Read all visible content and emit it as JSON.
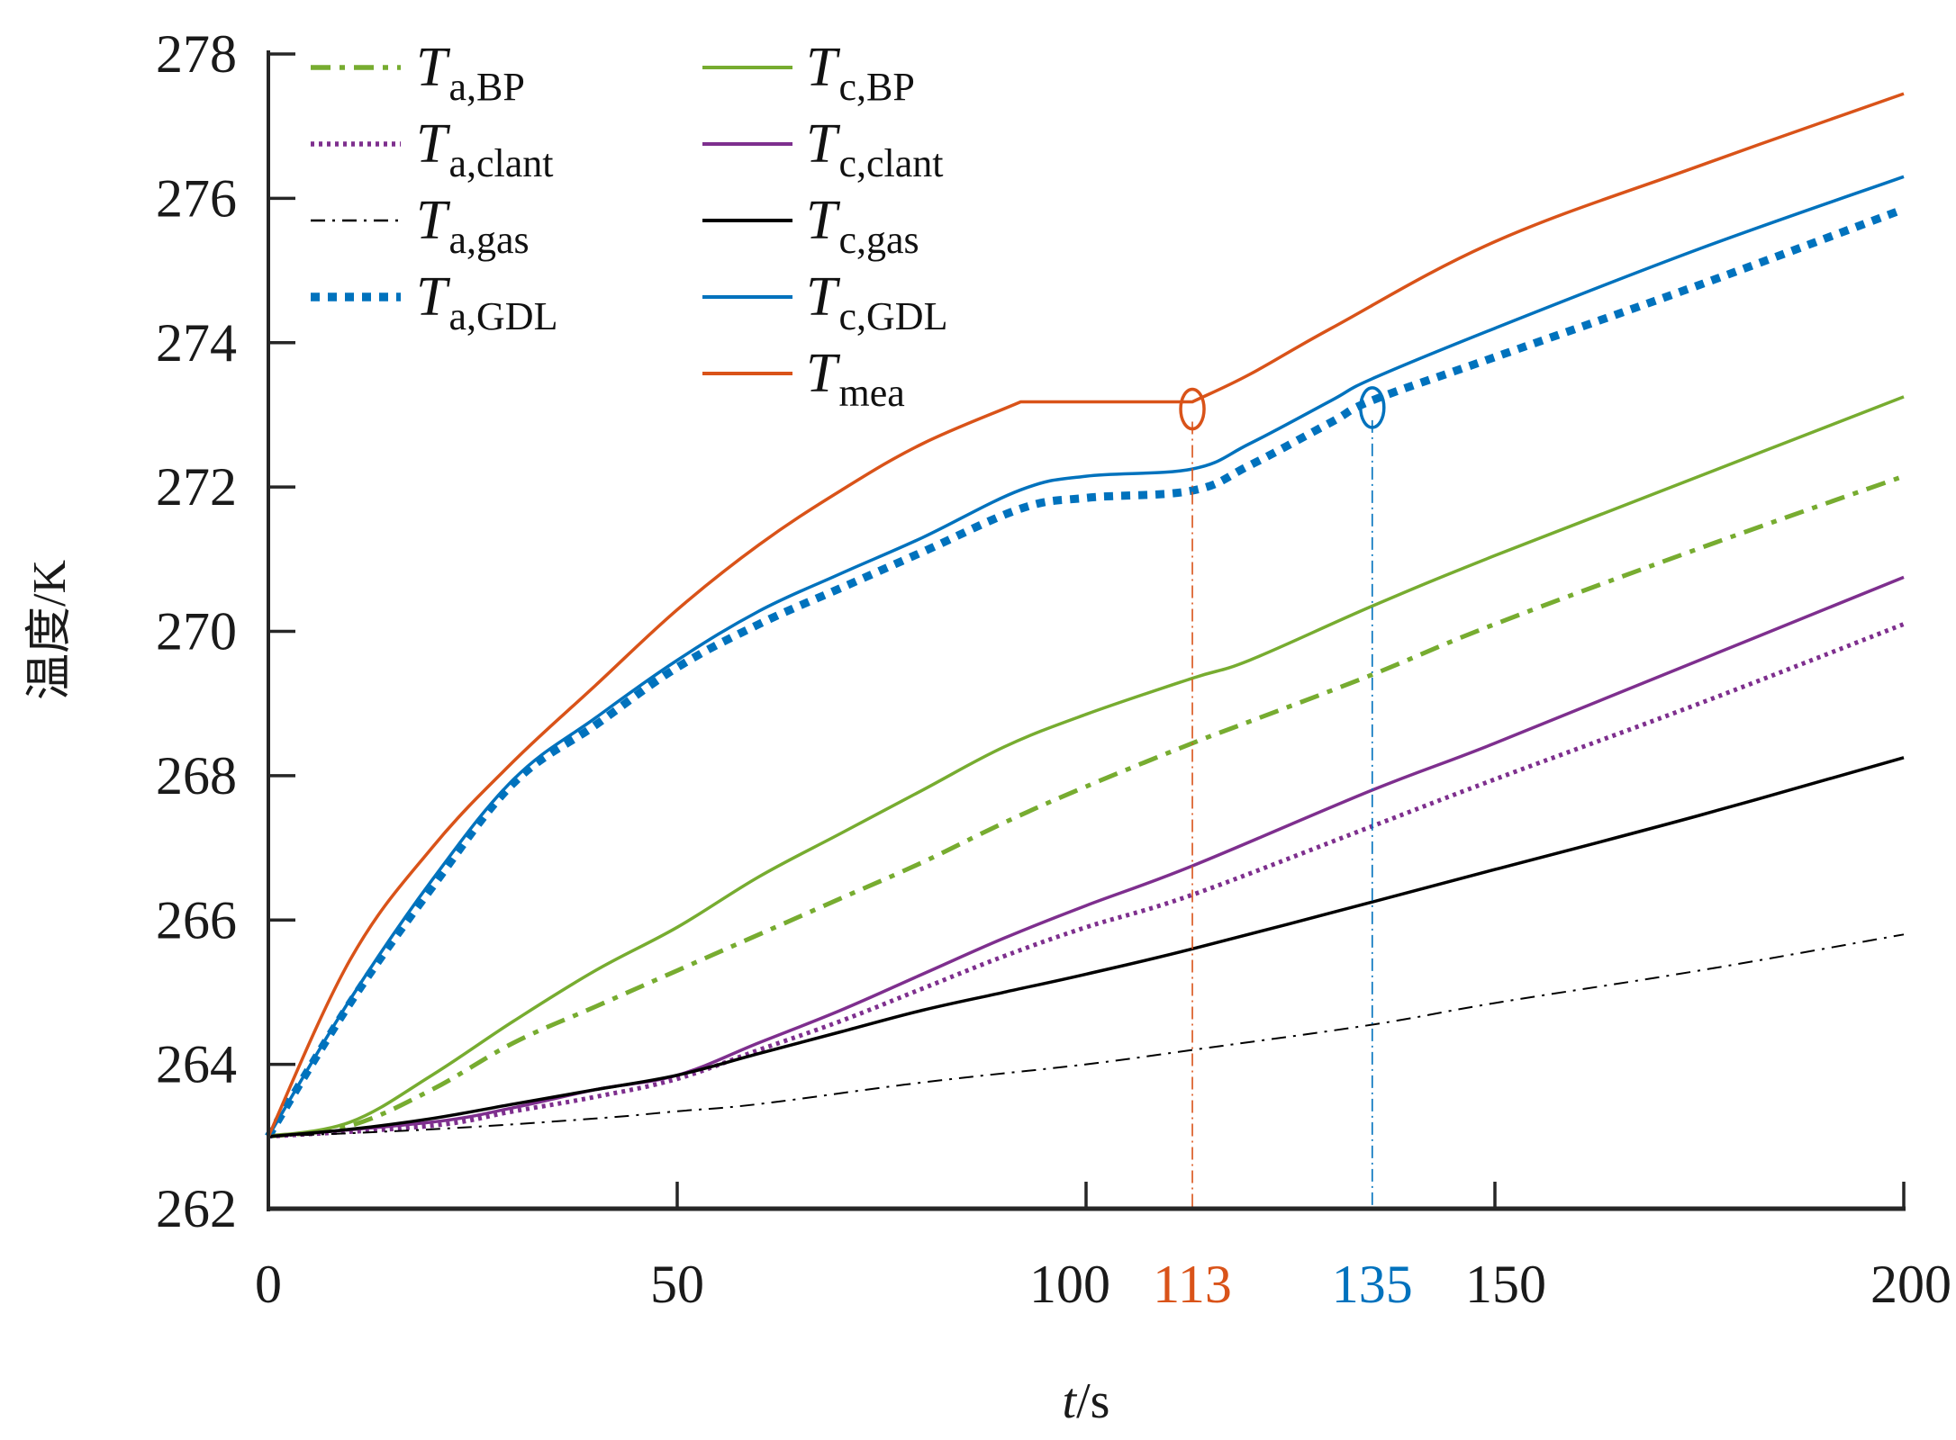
{
  "chart_data": {
    "type": "line",
    "title": "",
    "xlabel": "t/s",
    "xlabel_italic_part": "t",
    "xlabel_unit_part": "/s",
    "ylabel": "温度/K",
    "xlim": [
      0,
      200
    ],
    "ylim": [
      262,
      278
    ],
    "xticks": [
      0,
      50,
      100,
      150,
      200
    ],
    "yticks": [
      262,
      264,
      266,
      268,
      270,
      272,
      274,
      276,
      278
    ],
    "grid": false,
    "legend_position": "top-left",
    "annotations": [
      {
        "x": 113,
        "label": "113",
        "color": "#d95319",
        "marker_series": "T_mea",
        "marker_y": 273.18
      },
      {
        "x": 135,
        "label": "135",
        "color": "#0072bd",
        "marker_series": "T_a,GDL",
        "marker_y": 273.2
      }
    ],
    "series": [
      {
        "name": "T_a,BP",
        "main": "T",
        "sub": "a,BP",
        "color": "#77ac30",
        "style": "dashdot-thick",
        "x": [
          0,
          10,
          20,
          30,
          40,
          50,
          60,
          70,
          80,
          90,
          100,
          113,
          120,
          135,
          150,
          175,
          200
        ],
        "y": [
          263,
          263.15,
          263.65,
          264.3,
          264.8,
          265.3,
          265.8,
          266.3,
          266.8,
          267.35,
          267.85,
          268.45,
          268.75,
          269.4,
          270.1,
          271.15,
          272.15
        ]
      },
      {
        "name": "T_a,clant",
        "main": "T",
        "sub": "a,clant",
        "color": "#7e2f8e",
        "style": "dotted",
        "x": [
          0,
          20,
          30,
          40,
          50,
          60,
          70,
          80,
          90,
          100,
          113,
          135,
          150,
          175,
          200
        ],
        "y": [
          263,
          263.15,
          263.35,
          263.55,
          263.8,
          264.2,
          264.6,
          265.05,
          265.5,
          265.9,
          266.35,
          267.3,
          267.95,
          269.0,
          270.1
        ]
      },
      {
        "name": "T_a,gas",
        "main": "T",
        "sub": "a,gas",
        "color": "#000000",
        "style": "dashdot-thin",
        "x": [
          0,
          20,
          40,
          50,
          60,
          80,
          100,
          113,
          135,
          150,
          175,
          200
        ],
        "y": [
          263,
          263.1,
          263.25,
          263.35,
          263.45,
          263.75,
          264.0,
          264.2,
          264.55,
          264.85,
          265.3,
          265.8
        ]
      },
      {
        "name": "T_a,GDL",
        "main": "T",
        "sub": "a,GDL",
        "color": "#0072bd",
        "style": "dotted-thick",
        "x": [
          0,
          10,
          20,
          30,
          40,
          50,
          60,
          70,
          80,
          92,
          100,
          113,
          120,
          130,
          135,
          150,
          175,
          200
        ],
        "y": [
          263,
          264.85,
          266.45,
          267.9,
          268.7,
          269.5,
          270.1,
          270.6,
          271.1,
          271.7,
          271.85,
          271.95,
          272.3,
          272.9,
          273.2,
          273.8,
          274.8,
          275.85
        ]
      },
      {
        "name": "T_c,BP",
        "main": "T",
        "sub": "c,BP",
        "color": "#77ac30",
        "style": "solid",
        "x": [
          0,
          10,
          20,
          30,
          40,
          50,
          60,
          70,
          80,
          90,
          100,
          113,
          120,
          135,
          150,
          175,
          200
        ],
        "y": [
          263,
          263.2,
          263.85,
          264.6,
          265.3,
          265.9,
          266.6,
          267.2,
          267.8,
          268.4,
          268.85,
          269.35,
          269.6,
          270.35,
          271.05,
          272.15,
          273.25
        ]
      },
      {
        "name": "T_c,clant",
        "main": "T",
        "sub": "c,clant",
        "color": "#7e2f8e",
        "style": "solid",
        "x": [
          0,
          20,
          30,
          40,
          50,
          60,
          70,
          80,
          90,
          100,
          113,
          135,
          150,
          175,
          200
        ],
        "y": [
          263,
          263.2,
          263.4,
          263.65,
          263.85,
          264.3,
          264.75,
          265.25,
          265.75,
          266.2,
          266.75,
          267.8,
          268.45,
          269.6,
          270.75
        ]
      },
      {
        "name": "T_c,gas",
        "main": "T",
        "sub": "c,gas",
        "color": "#000000",
        "style": "solid",
        "x": [
          0,
          10,
          20,
          30,
          40,
          50,
          60,
          70,
          80,
          90,
          100,
          113,
          135,
          150,
          175,
          200
        ],
        "y": [
          263,
          263.1,
          263.25,
          263.45,
          263.65,
          263.85,
          264.15,
          264.45,
          264.75,
          265.0,
          265.25,
          265.6,
          266.25,
          266.7,
          267.45,
          268.25
        ]
      },
      {
        "name": "T_c,GDL",
        "main": "T",
        "sub": "c,GDL",
        "color": "#0072bd",
        "style": "solid",
        "x": [
          0,
          10,
          20,
          30,
          40,
          50,
          60,
          70,
          80,
          92,
          100,
          113,
          120,
          130,
          135,
          150,
          175,
          200
        ],
        "y": [
          263,
          264.9,
          266.55,
          267.95,
          268.8,
          269.6,
          270.28,
          270.8,
          271.3,
          271.96,
          272.15,
          272.25,
          272.6,
          273.2,
          273.5,
          274.2,
          275.3,
          276.3
        ]
      },
      {
        "name": "T_mea",
        "main": "T",
        "sub": "mea",
        "color": "#d95319",
        "style": "solid",
        "x": [
          0,
          10,
          20,
          30,
          40,
          50,
          60,
          70,
          80,
          92,
          113,
          120,
          130,
          150,
          175,
          200
        ],
        "y": [
          263,
          265.45,
          267.0,
          268.2,
          269.25,
          270.3,
          271.2,
          271.95,
          272.6,
          273.18,
          273.18,
          273.56,
          274.2,
          275.4,
          276.45,
          277.45
        ]
      }
    ]
  }
}
